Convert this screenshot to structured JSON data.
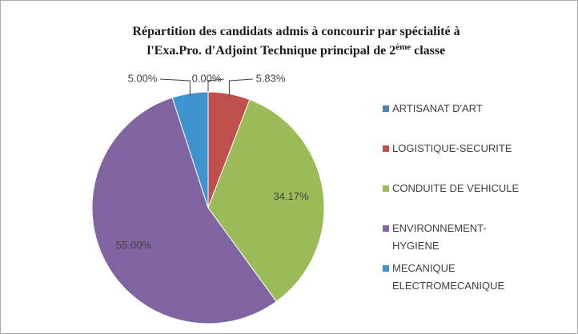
{
  "chart_data": {
    "type": "pie",
    "title": {
      "line1": "Répartition des candidats admis à concourir par spécialité à",
      "line2": "l'Exa.Pro. d'Adjoint Technique principal de 2",
      "superscript": "ème",
      "line2_end": " classe"
    },
    "categories": [
      "ARTISANAT D'ART",
      "LOGISTIQUE-SECURITE",
      "CONDUITE DE VEHICULE",
      "ENVIRONNEMENT-HYGIENE",
      "MECANIQUE ELECTROMECANIQUE"
    ],
    "values": [
      0.0,
      5.83,
      34.17,
      55.0,
      5.0
    ],
    "value_labels": [
      "0.00%",
      "5.83%",
      "34.17%",
      "55.00%",
      "5.00%"
    ],
    "colors": [
      "#4f81bd",
      "#c0504d",
      "#9bbb59",
      "#8064a2",
      "#3f93cf"
    ],
    "legend": "right"
  }
}
